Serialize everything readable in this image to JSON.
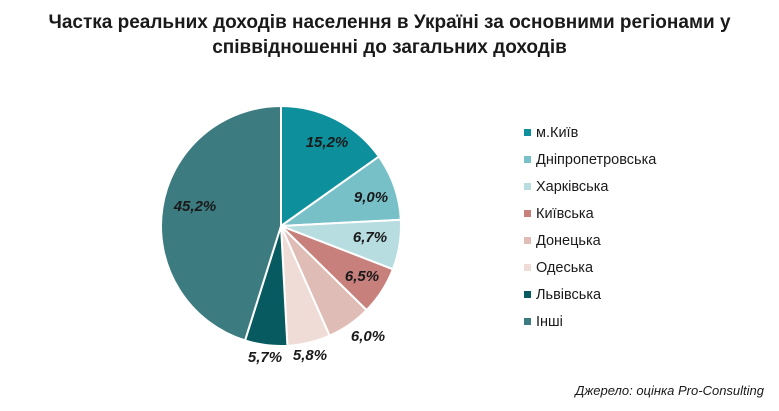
{
  "chart_data": {
    "type": "pie",
    "title": "Частка реальних доходів населення в Україні за основними регіонами у співвідношенні до загальних доходів",
    "title_lines": [
      "Частка реальних доходів населення в Україні за основними регіонами у",
      "співвідношенні до загальних доходів"
    ],
    "categories": [
      "м.Київ",
      "Дніпропетровська",
      "Харківська",
      "Київська",
      "Донецька",
      "Одеська",
      "Львівська",
      "Інші"
    ],
    "values": [
      15.2,
      9.0,
      6.7,
      6.5,
      6.0,
      5.8,
      5.7,
      45.2
    ],
    "labels": [
      "15,2%",
      "9,0%",
      "6,7%",
      "6,5%",
      "6,0%",
      "5,8%",
      "5,7%",
      "45,2%"
    ],
    "colors": [
      "#0e8f9c",
      "#78c0c8",
      "#b7dde1",
      "#c7807c",
      "#e0bcb6",
      "#efdcd7",
      "#065a60",
      "#3c7b80"
    ],
    "start_angle_deg": 0,
    "direction": "clockwise",
    "legend_position": "right"
  },
  "source_note": "Джерело: оцінка Pro-Consulting"
}
